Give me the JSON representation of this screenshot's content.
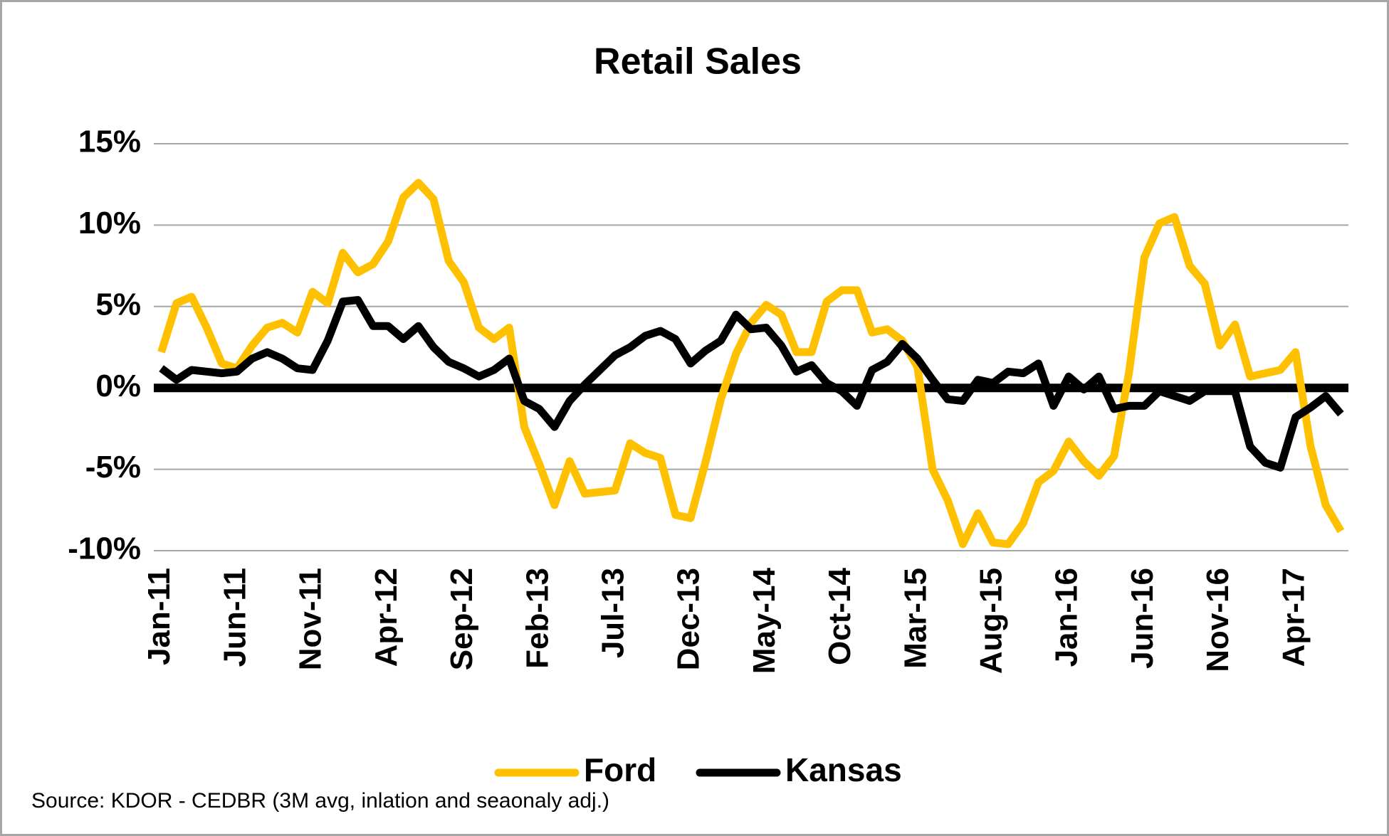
{
  "chart_data": {
    "type": "line",
    "title": "Retail Sales",
    "source": "Source: KDOR - CEDBR (3M avg, inlation and seaonaly adj.)",
    "categories": [
      "Jan-11",
      null,
      null,
      null,
      null,
      "Jun-11",
      null,
      null,
      null,
      null,
      "Nov-11",
      null,
      null,
      null,
      null,
      "Apr-12",
      null,
      null,
      null,
      null,
      "Sep-12",
      null,
      null,
      null,
      null,
      "Feb-13",
      null,
      null,
      null,
      null,
      "Jul-13",
      null,
      null,
      null,
      null,
      "Dec-13",
      null,
      null,
      null,
      null,
      "May-14",
      null,
      null,
      null,
      null,
      "Oct-14",
      null,
      null,
      null,
      null,
      "Mar-15",
      null,
      null,
      null,
      null,
      "Aug-15",
      null,
      null,
      null,
      null,
      "Jan-16",
      null,
      null,
      null,
      null,
      "Jun-16",
      null,
      null,
      null,
      null,
      "Nov-16",
      null,
      null,
      null,
      null,
      "Apr-17",
      null,
      null,
      null
    ],
    "series": [
      {
        "name": "Ford",
        "color": "#ffc000",
        "values": [
          2.2,
          5.2,
          5.6,
          3.7,
          1.5,
          1.2,
          2.6,
          3.7,
          4.0,
          3.4,
          5.9,
          5.2,
          8.3,
          7.1,
          7.6,
          9.0,
          11.7,
          12.6,
          11.6,
          7.8,
          6.5,
          3.7,
          3.0,
          3.7,
          -2.4,
          -4.7,
          -7.2,
          -4.5,
          -6.5,
          -6.4,
          -6.3,
          -3.4,
          -4.0,
          -4.3,
          -7.8,
          -8.0,
          -4.5,
          -0.7,
          2.1,
          4.0,
          5.1,
          4.5,
          2.2,
          2.2,
          5.3,
          6.0,
          6.0,
          3.4,
          3.6,
          2.9,
          1.3,
          -5.0,
          -6.9,
          -9.6,
          -7.7,
          -9.5,
          -9.6,
          -8.3,
          -5.8,
          -5.1,
          -3.3,
          -4.5,
          -5.4,
          -4.2,
          1.0,
          8.0,
          10.1,
          10.5,
          7.5,
          6.4,
          2.6,
          3.9,
          0.7,
          0.9,
          1.1,
          2.2,
          -3.6,
          -7.2,
          -8.8
        ]
      },
      {
        "name": "Kansas",
        "color": "#000000",
        "values": [
          1.2,
          0.5,
          1.1,
          1.0,
          0.9,
          1.0,
          1.8,
          2.2,
          1.8,
          1.2,
          1.1,
          2.9,
          5.3,
          5.4,
          3.8,
          3.8,
          3.0,
          3.8,
          2.5,
          1.6,
          1.2,
          0.7,
          1.1,
          1.8,
          -0.8,
          -1.3,
          -2.4,
          -0.8,
          0.2,
          1.1,
          2.0,
          2.5,
          3.2,
          3.5,
          3.0,
          1.5,
          2.3,
          2.9,
          4.5,
          3.6,
          3.7,
          2.6,
          1.0,
          1.4,
          0.3,
          -0.2,
          -1.1,
          1.1,
          1.6,
          2.7,
          1.8,
          0.5,
          -0.7,
          -0.8,
          0.5,
          0.3,
          1.0,
          0.9,
          1.5,
          -1.1,
          0.7,
          -0.1,
          0.7,
          -1.3,
          -1.1,
          -1.1,
          -0.2,
          -0.5,
          -0.8,
          -0.2,
          -0.2,
          -0.2,
          -3.6,
          -4.6,
          -4.9,
          -1.8,
          -1.2,
          -0.5,
          -1.6
        ]
      }
    ],
    "ylim": [
      -10,
      15
    ],
    "yticks": [
      {
        "value": -10,
        "label": "-10%"
      },
      {
        "value": -5,
        "label": "-5%"
      },
      {
        "value": 0,
        "label": "0%"
      },
      {
        "value": 5,
        "label": "5%"
      },
      {
        "value": 10,
        "label": "10%"
      },
      {
        "value": 15,
        "label": "15%"
      }
    ],
    "grid": true,
    "legend": "bottom"
  }
}
